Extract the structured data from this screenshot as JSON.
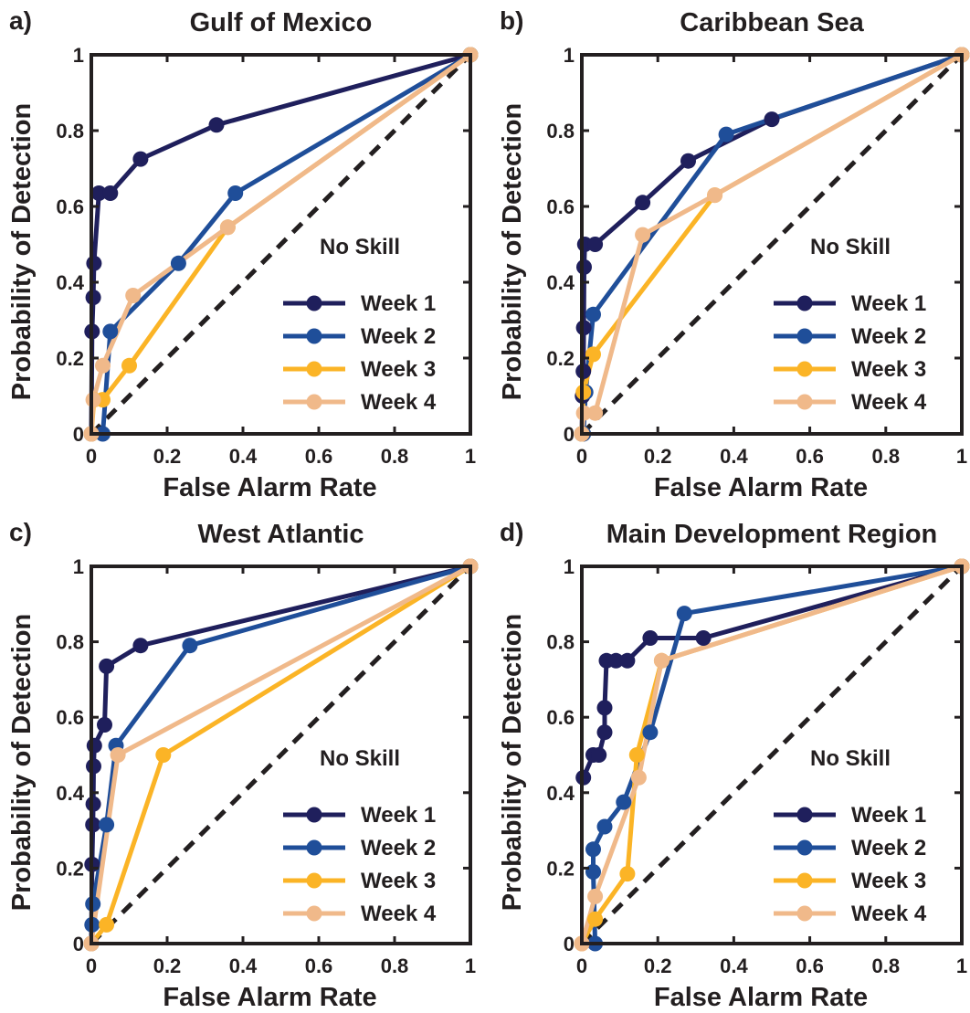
{
  "colors": {
    "axis": "#231f20",
    "no_skill": "#231f20",
    "week1": "#1f1f5c",
    "week2": "#1f4e99",
    "week3": "#fbb426",
    "week4": "#f0b98a"
  },
  "chart_data": [
    {
      "type": "line",
      "panel_label": "a)",
      "title": "Gulf of Mexico",
      "xlabel": "False Alarm Rate",
      "ylabel": "Probability of Detection",
      "xlim": [
        0,
        1
      ],
      "ylim": [
        0,
        1
      ],
      "xticks": [
        "0",
        "0.2",
        "0.4",
        "0.6",
        "0.8",
        "1"
      ],
      "yticks": [
        "0",
        "0.2",
        "0.4",
        "0.6",
        "0.8",
        "1"
      ],
      "grid": false,
      "legend_position": "bottom-right",
      "no_skill_label": "No Skill",
      "series": [
        {
          "name": "Week 1",
          "x": [
            0,
            0.002,
            0.005,
            0.007,
            0.02,
            0.05,
            0.13,
            0.33,
            1
          ],
          "y": [
            0,
            0.27,
            0.36,
            0.45,
            0.635,
            0.635,
            0.725,
            0.815,
            1
          ]
        },
        {
          "name": "Week 2",
          "x": [
            0.03,
            0.05,
            0.23,
            0.38,
            1
          ],
          "y": [
            0,
            0.27,
            0.45,
            0.635,
            1
          ]
        },
        {
          "name": "Week 3",
          "x": [
            0,
            0.007,
            0.03,
            0.1,
            0.36,
            1
          ],
          "y": [
            0,
            0.09,
            0.09,
            0.18,
            0.545,
            1
          ]
        },
        {
          "name": "Week 4",
          "x": [
            0,
            0.005,
            0.03,
            0.11,
            0.36,
            1
          ],
          "y": [
            0,
            0.09,
            0.18,
            0.365,
            0.545,
            1
          ]
        }
      ]
    },
    {
      "type": "line",
      "panel_label": "b)",
      "title": "Caribbean Sea",
      "xlabel": "False Alarm Rate",
      "ylabel": "Probability of Detection",
      "xlim": [
        0,
        1
      ],
      "ylim": [
        0,
        1
      ],
      "xticks": [
        "0",
        "0.2",
        "0.4",
        "0.6",
        "0.8",
        "1"
      ],
      "yticks": [
        "0",
        "0.2",
        "0.4",
        "0.6",
        "0.8",
        "1"
      ],
      "grid": false,
      "legend_position": "bottom-right",
      "no_skill_label": "No Skill",
      "series": [
        {
          "name": "Week 1",
          "x": [
            0,
            0.002,
            0.004,
            0.005,
            0.006,
            0.008,
            0.035,
            0.16,
            0.28,
            0.5,
            1
          ],
          "y": [
            0,
            0.1,
            0.165,
            0.28,
            0.44,
            0.5,
            0.5,
            0.61,
            0.72,
            0.83,
            1
          ]
        },
        {
          "name": "Week 2",
          "x": [
            0.004,
            0.01,
            0.03,
            0.38,
            1
          ],
          "y": [
            0,
            0.11,
            0.315,
            0.79,
            1
          ]
        },
        {
          "name": "Week 3",
          "x": [
            0,
            0.004,
            0.03,
            0.35,
            1
          ],
          "y": [
            0,
            0.11,
            0.21,
            0.63,
            1
          ]
        },
        {
          "name": "Week 4",
          "x": [
            0,
            0.005,
            0.035,
            0.16,
            0.35,
            1
          ],
          "y": [
            0,
            0.055,
            0.055,
            0.525,
            0.63,
            1
          ]
        }
      ]
    },
    {
      "type": "line",
      "panel_label": "c)",
      "title": "West Atlantic",
      "xlabel": "False Alarm Rate",
      "ylabel": "Probability of Detection",
      "xlim": [
        0,
        1
      ],
      "ylim": [
        0,
        1
      ],
      "xticks": [
        "0",
        "0.2",
        "0.4",
        "0.6",
        "0.8",
        "1"
      ],
      "yticks": [
        "0",
        "0.2",
        "0.4",
        "0.6",
        "0.8",
        "1"
      ],
      "grid": false,
      "legend_position": "bottom-right",
      "no_skill_label": "No Skill",
      "series": [
        {
          "name": "Week 1",
          "x": [
            0,
            0.002,
            0.004,
            0.005,
            0.006,
            0.008,
            0.035,
            0.04,
            0.13,
            1
          ],
          "y": [
            0,
            0.21,
            0.315,
            0.37,
            0.47,
            0.525,
            0.58,
            0.735,
            0.79,
            1
          ]
        },
        {
          "name": "Week 2",
          "x": [
            0.002,
            0.004,
            0.04,
            0.065,
            0.26,
            1
          ],
          "y": [
            0.05,
            0.105,
            0.315,
            0.525,
            0.79,
            1
          ]
        },
        {
          "name": "Week 3",
          "x": [
            0,
            0.04,
            0.19,
            1
          ],
          "y": [
            0,
            0.05,
            0.5,
            1
          ]
        },
        {
          "name": "Week 4",
          "x": [
            0,
            0.07,
            1
          ],
          "y": [
            0,
            0.5,
            1
          ]
        }
      ]
    },
    {
      "type": "line",
      "panel_label": "d)",
      "title": "Main Development Region",
      "xlabel": "False Alarm Rate",
      "ylabel": "Probability of Detection",
      "xlim": [
        0,
        1
      ],
      "ylim": [
        0,
        1
      ],
      "xticks": [
        "0",
        "0.2",
        "0.4",
        "0.6",
        "0.8",
        "1"
      ],
      "yticks": [
        "0",
        "0.2",
        "0.4",
        "0.6",
        "0.8",
        "1"
      ],
      "grid": false,
      "legend_position": "bottom-right",
      "no_skill_label": "No Skill",
      "series": [
        {
          "name": "Week 1",
          "x": [
            0.004,
            0.03,
            0.045,
            0.06,
            0.06,
            0.065,
            0.09,
            0.12,
            0.18,
            0.32,
            1
          ],
          "y": [
            0.44,
            0.5,
            0.5,
            0.56,
            0.625,
            0.75,
            0.75,
            0.75,
            0.81,
            0.81,
            1
          ]
        },
        {
          "name": "Week 2",
          "x": [
            0.035,
            0.03,
            0.03,
            0.06,
            0.11,
            0.18,
            0.27,
            1
          ],
          "y": [
            0,
            0.19,
            0.25,
            0.31,
            0.375,
            0.56,
            0.875,
            1
          ]
        },
        {
          "name": "Week 3",
          "x": [
            0,
            0.035,
            0.12,
            0.145,
            0.21,
            1
          ],
          "y": [
            0,
            0.065,
            0.185,
            0.5,
            0.75,
            1
          ]
        },
        {
          "name": "Week 4",
          "x": [
            0,
            0.035,
            0.15,
            0.21,
            1
          ],
          "y": [
            0,
            0.125,
            0.44,
            0.75,
            1
          ]
        }
      ]
    }
  ]
}
